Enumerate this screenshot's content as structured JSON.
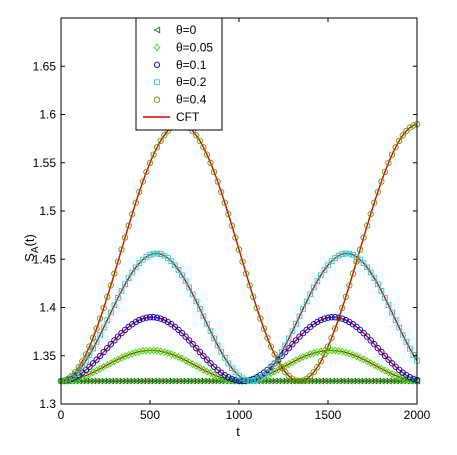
{
  "chart_data": {
    "type": "line",
    "xlabel": "t",
    "ylabel_main": "S",
    "ylabel_sub": "A",
    "ylabel_tail": "(t)",
    "xlim": [
      0,
      2000
    ],
    "ylim": [
      1.3,
      1.7
    ],
    "xticks": [
      0,
      500,
      1000,
      1500,
      2000
    ],
    "yticks": [
      1.3,
      1.35,
      1.4,
      1.45,
      1.5,
      1.55,
      1.6,
      1.65
    ],
    "xtick_labels": [
      "0",
      "500",
      "1000",
      "1500",
      "2000"
    ],
    "ytick_labels": [
      "1.3",
      "1.35",
      "1.4",
      "1.45",
      "1.5",
      "1.55",
      "1.6",
      "1.65"
    ],
    "grid": false,
    "legend_position": "top-center",
    "baseline": 1.3238,
    "series": [
      {
        "name": "θ=0",
        "marker": "triangle-left",
        "color": "#008000",
        "peak": 1.3238,
        "period": 1000,
        "marker_step": 20
      },
      {
        "name": "θ=0.05",
        "marker": "diamond",
        "color": "#33dd00",
        "peak": 1.3555,
        "period": 1010,
        "marker_step": 20
      },
      {
        "name": "θ=0.1",
        "marker": "circle",
        "color": "#0000cc",
        "peak": 1.39,
        "period": 1020,
        "marker_step": 20
      },
      {
        "name": "θ=0.2",
        "marker": "square",
        "color": "#22cccc",
        "peak": 1.456,
        "period": 1070,
        "marker_step": 20
      },
      {
        "name": "θ=0.4",
        "marker": "circle",
        "color": "#669900",
        "peak": 1.59,
        "period": 1340,
        "marker_step": 20
      }
    ],
    "cft": {
      "name": "CFT",
      "color": "#dd0000",
      "curves": [
        {
          "peak": 1.3555,
          "period": 1010
        },
        {
          "peak": 1.39,
          "period": 1020
        },
        {
          "peak": 1.456,
          "period": 1070
        },
        {
          "peak": 1.59,
          "period": 1340
        }
      ]
    }
  }
}
